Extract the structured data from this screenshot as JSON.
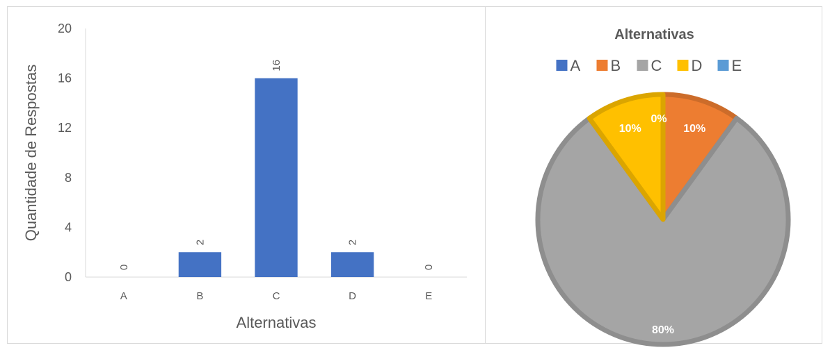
{
  "chart_data": [
    {
      "type": "bar",
      "categories": [
        "A",
        "B",
        "C",
        "D",
        "E"
      ],
      "values": [
        0,
        2,
        16,
        2,
        0
      ],
      "data_labels": [
        "0",
        "2",
        "16",
        "2",
        "0"
      ],
      "xlabel": "Alternativas",
      "ylabel": "Quantidade de Respostas",
      "ylim": [
        0,
        20
      ],
      "yticks": [
        "0",
        "4",
        "8",
        "12",
        "16",
        "20"
      ],
      "ytick_values": [
        0,
        4,
        8,
        12,
        16,
        20
      ],
      "bar_color": "#4472c4",
      "grid": false
    },
    {
      "type": "pie",
      "title": "Alternativas",
      "legend_position": "top",
      "categories": [
        "A",
        "B",
        "C",
        "D",
        "E"
      ],
      "values": [
        0,
        10,
        80,
        10,
        0
      ],
      "labels": [
        "",
        "10%",
        "80%",
        "10%",
        "0%"
      ],
      "colors": [
        "#4472c4",
        "#ed7d31",
        "#a5a5a5",
        "#ffc000",
        "#5b9bd5"
      ]
    }
  ]
}
